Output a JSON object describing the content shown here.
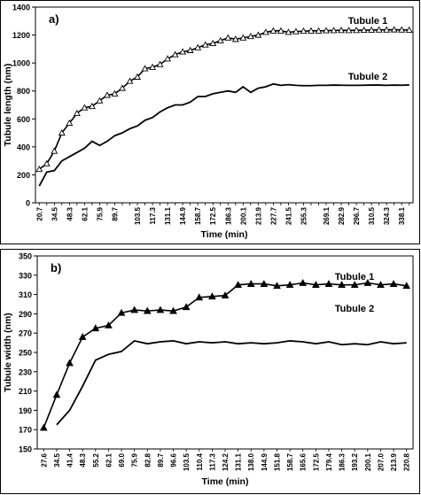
{
  "chart_data": [
    {
      "type": "line",
      "panel_label": "a)",
      "xlabel": "Time (min)",
      "ylabel": "Tubule length (nm)",
      "ylim": [
        0,
        1400
      ],
      "yticks": [
        "0",
        "200",
        "400",
        "600",
        "800",
        "1000",
        "1200",
        "1400"
      ],
      "xtick_labels": [
        "20.7",
        "34.5",
        "48.3",
        "62.1",
        "75.9",
        "89.7",
        "103.5",
        "117.3",
        "131.1",
        "144.9",
        "158.7",
        "172.5",
        "186.3",
        "200.1",
        "213.9",
        "227.7",
        "241.5",
        "255.3",
        "269.1",
        "282.9",
        "296.7",
        "310.5",
        "324.3",
        "338.1"
      ],
      "grid": false,
      "series": [
        {
          "name": "Tubule 1",
          "marker": "open-triangle",
          "values": [
            240,
            280,
            370,
            500,
            570,
            640,
            680,
            690,
            730,
            770,
            780,
            820,
            870,
            900,
            960,
            970,
            990,
            1030,
            1060,
            1080,
            1090,
            1110,
            1130,
            1140,
            1160,
            1180,
            1170,
            1180,
            1190,
            1200,
            1220,
            1230,
            1230,
            1220,
            1225,
            1228,
            1230,
            1230,
            1232,
            1233,
            1234,
            1233,
            1234,
            1235,
            1236,
            1237,
            1237,
            1238,
            1237,
            1236
          ]
        },
        {
          "name": "Tubule 2",
          "marker": "none",
          "values": [
            120,
            220,
            230,
            300,
            330,
            360,
            390,
            440,
            410,
            440,
            480,
            500,
            530,
            550,
            590,
            610,
            650,
            680,
            700,
            700,
            720,
            760,
            760,
            780,
            790,
            800,
            790,
            830,
            790,
            820,
            830,
            850,
            840,
            845,
            840,
            838,
            838,
            840,
            840,
            842,
            841,
            840,
            840,
            841,
            842,
            842,
            840,
            842,
            841,
            843
          ]
        }
      ]
    },
    {
      "type": "line",
      "panel_label": "b)",
      "xlabel": "Time (min)",
      "ylabel": "Tubule width (nm)",
      "ylim": [
        150,
        350
      ],
      "yticks": [
        "150",
        "170",
        "190",
        "210",
        "230",
        "250",
        "270",
        "290",
        "310",
        "330",
        "350"
      ],
      "xtick_labels": [
        "27.6",
        "34.5",
        "41.4",
        "48.3",
        "55.2",
        "62.1",
        "69.0",
        "75.9",
        "82.8",
        "89.7",
        "96.6",
        "103.5",
        "110.4",
        "117.3",
        "124.2",
        "131.1",
        "138.0",
        "144.9",
        "151.8",
        "158.7",
        "165.6",
        "172.5",
        "179.4",
        "186.3",
        "193.2",
        "200.1",
        "207.0",
        "213.9",
        "220.8"
      ],
      "grid": false,
      "series": [
        {
          "name": "Tubule 1",
          "marker": "filled-triangle",
          "values": [
            172,
            206,
            239,
            266,
            275,
            278,
            291,
            294,
            293,
            294,
            293,
            297,
            307,
            308,
            309,
            320,
            321,
            321,
            319,
            320,
            322,
            320,
            321,
            320,
            320,
            322,
            320,
            321,
            319
          ]
        },
        {
          "name": "Tubule 2",
          "marker": "none",
          "values": [
            null,
            175,
            190,
            215,
            242,
            248,
            251,
            262,
            259,
            261,
            262,
            259,
            261,
            260,
            261,
            259,
            260,
            259,
            260,
            262,
            261,
            259,
            261,
            258,
            259,
            258,
            261,
            259,
            260
          ]
        }
      ]
    }
  ]
}
